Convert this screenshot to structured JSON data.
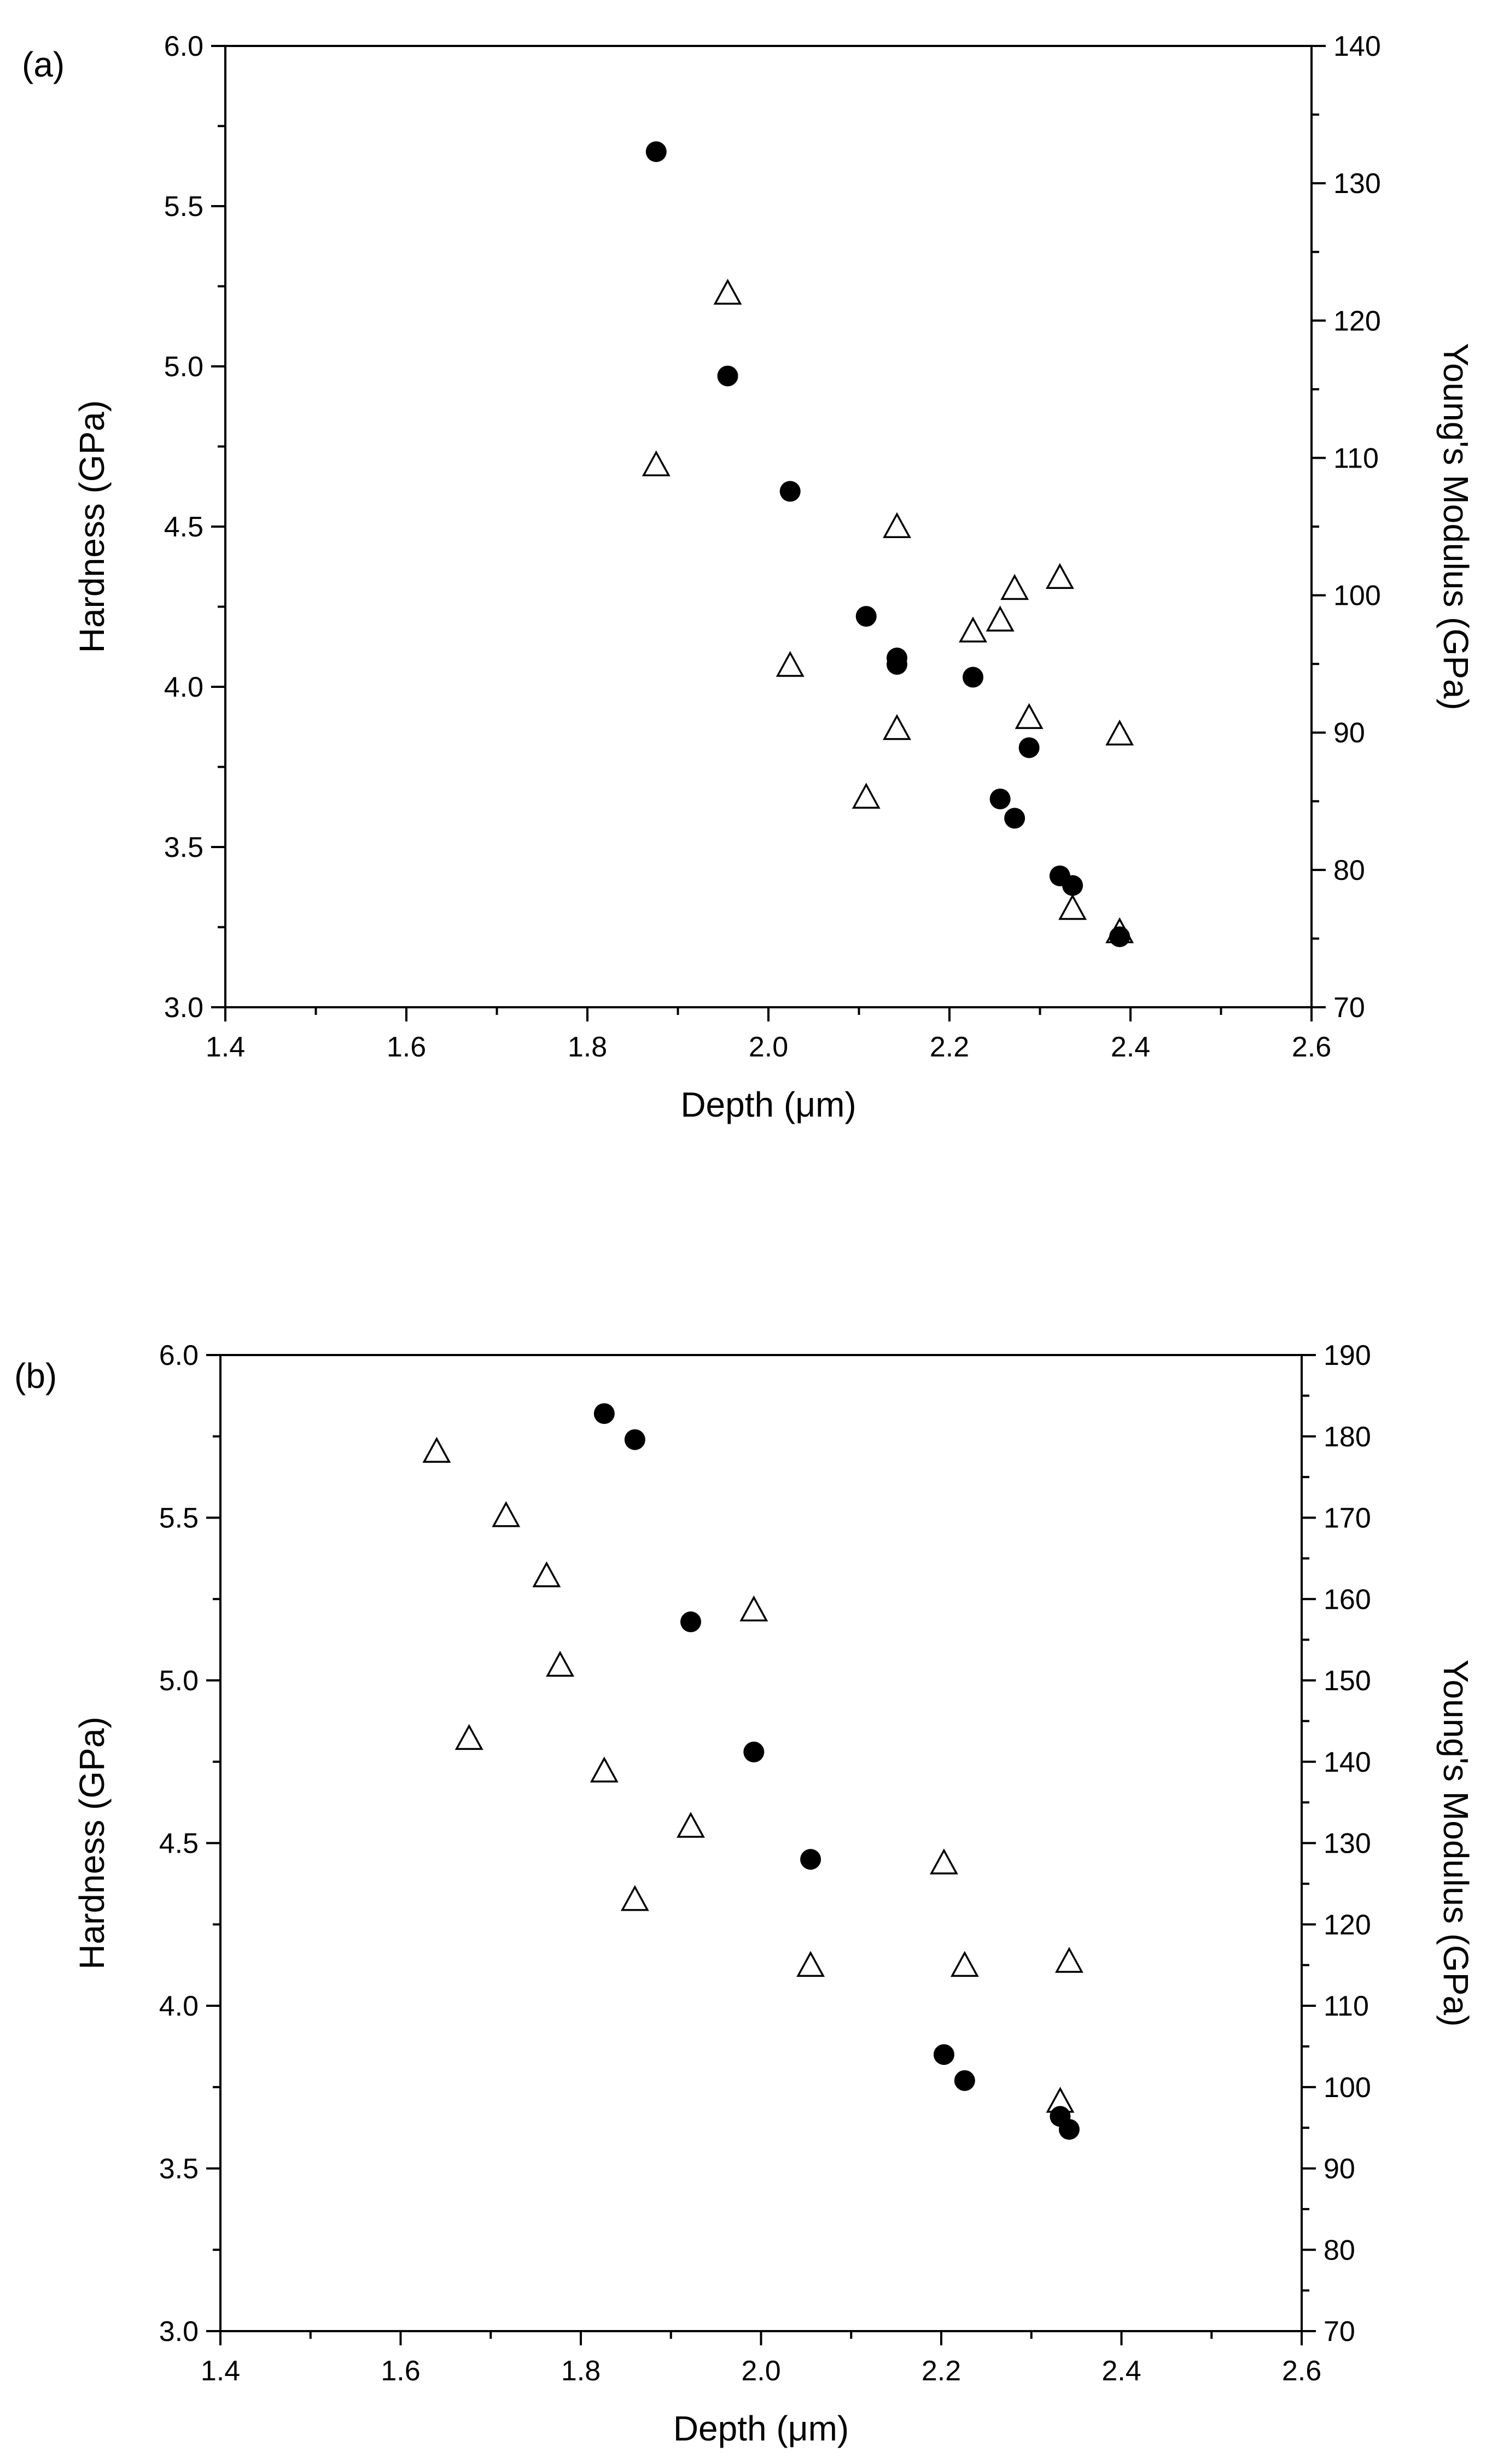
{
  "chart_data": [
    {
      "panel_label": "(a)",
      "type": "scatter",
      "xlabel": "Depth (μm)",
      "ylabel": "Hardness (GPa)",
      "y2label": "Young's Modulus (GPa)",
      "xlim": [
        1.4,
        2.6
      ],
      "ylim": [
        3.0,
        6.0
      ],
      "y2lim": [
        70,
        140
      ],
      "xticks": [
        "1.4",
        "1.6",
        "1.8",
        "2.0",
        "2.2",
        "2.4",
        "2.6"
      ],
      "yticks": [
        "3.0",
        "3.5",
        "4.0",
        "4.5",
        "5.0",
        "5.5",
        "6.0"
      ],
      "y2ticks": [
        "70",
        "80",
        "90",
        "100",
        "110",
        "120",
        "130",
        "140"
      ],
      "series": [
        {
          "name": "Hardness",
          "axis": "left",
          "marker": "filled-circle",
          "x": [
            1.876,
            1.955,
            2.024,
            2.108,
            2.142,
            2.142,
            2.226,
            2.256,
            2.272,
            2.288,
            2.322,
            2.336,
            2.388
          ],
          "y": [
            5.67,
            4.97,
            4.61,
            4.22,
            4.09,
            4.07,
            4.03,
            3.65,
            3.59,
            3.81,
            3.41,
            3.38,
            3.22
          ]
        },
        {
          "name": "Young's Modulus",
          "axis": "right",
          "marker": "open-triangle",
          "x": [
            1.876,
            1.955,
            2.024,
            2.108,
            2.142,
            2.142,
            2.226,
            2.256,
            2.272,
            2.288,
            2.322,
            2.336,
            2.388,
            2.388
          ],
          "y": [
            109.4,
            121.9,
            94.8,
            85.2,
            104.9,
            90.2,
            97.3,
            98.1,
            100.4,
            91.0,
            101.2,
            77.1,
            89.8,
            75.4
          ]
        }
      ]
    },
    {
      "panel_label": "(b)",
      "type": "scatter",
      "xlabel": "Depth (μm)",
      "ylabel": "Hardness (GPa)",
      "y2label": "Young's Modulus (GPa)",
      "xlim": [
        1.4,
        2.6
      ],
      "ylim": [
        3.0,
        6.0
      ],
      "y2lim": [
        70,
        190
      ],
      "xticks": [
        "1.4",
        "1.6",
        "1.8",
        "2.0",
        "2.2",
        "2.4",
        "2.6"
      ],
      "yticks": [
        "3.0",
        "3.5",
        "4.0",
        "4.5",
        "5.0",
        "5.5",
        "6.0"
      ],
      "y2ticks": [
        "70",
        "80",
        "90",
        "100",
        "110",
        "120",
        "130",
        "140",
        "150",
        "160",
        "170",
        "180",
        "190"
      ],
      "series": [
        {
          "name": "Hardness",
          "axis": "left",
          "marker": "filled-circle",
          "x": [
            1.826,
            1.86,
            1.922,
            1.992,
            2.055,
            2.203,
            2.226,
            2.332,
            2.342
          ],
          "y": [
            5.82,
            5.74,
            5.18,
            4.78,
            4.45,
            3.85,
            3.77,
            3.66,
            3.62
          ]
        },
        {
          "name": "Young's Modulus",
          "axis": "right",
          "marker": "open-triangle",
          "x": [
            1.64,
            1.676,
            1.717,
            1.762,
            1.777,
            1.826,
            1.86,
            1.922,
            1.992,
            2.055,
            2.203,
            2.226,
            2.332,
            2.342
          ],
          "y": [
            178.0,
            142.7,
            170.1,
            162.7,
            151.7,
            138.7,
            122.9,
            131.9,
            158.5,
            114.8,
            127.4,
            114.8,
            98.1,
            115.3
          ]
        }
      ]
    }
  ]
}
